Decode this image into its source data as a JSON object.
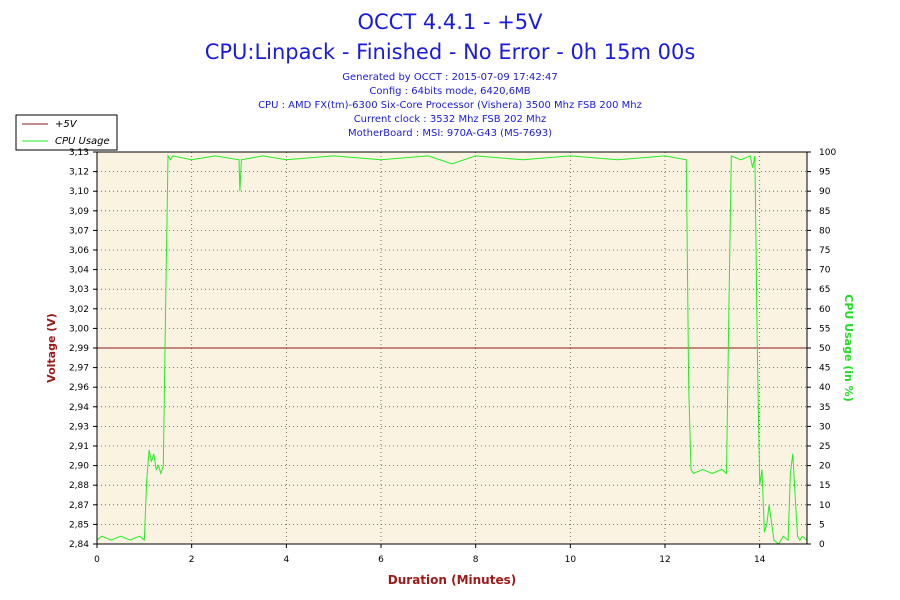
{
  "header": {
    "title": "OCCT 4.4.1 - +5V",
    "subtitle": "CPU:Linpack - Finished - No Error - 0h 15m 00s",
    "info_lines": [
      "Generated by OCCT : 2015-07-09 17:42:47",
      "Config : 64bits mode, 6420,6MB",
      "CPU : AMD FX(tm)-6300 Six-Core Processor (Vishera) 3500 Mhz FSB 200 Mhz",
      "Current clock : 3532 Mhz FSB 202 Mhz",
      "MotherBoard : MSI: 970A-G43 (MS-7693)"
    ]
  },
  "legend": {
    "placement": "top-left",
    "items": [
      {
        "label": "+5V",
        "color": "#8b1a1a"
      },
      {
        "label": "CPU Usage",
        "color": "#22ee22"
      }
    ]
  },
  "colors": {
    "plot_bg": "#faf3e2",
    "voltage": "#8b1a1a",
    "cpu": "#22ee22",
    "title": "#1a1ae0",
    "voltage_axis": "#a01818",
    "cpu_axis": "#22dd22"
  },
  "chart_data": {
    "type": "line",
    "xlabel": "Duration (Minutes)",
    "ylabel": "Voltage (V)",
    "y2label": "CPU Usage (in %)",
    "xlim": [
      0,
      15
    ],
    "ylim": [
      2.84,
      3.14
    ],
    "y2lim": [
      0,
      100
    ],
    "grid": true,
    "x_ticks": [
      0,
      2,
      4,
      6,
      8,
      10,
      12,
      14
    ],
    "y_ticks": [
      "2,84",
      "2,85",
      "2,87",
      "2,88",
      "2,90",
      "2,91",
      "2,93",
      "2,94",
      "2,96",
      "2,97",
      "2,99",
      "3,00",
      "3,02",
      "3,03",
      "3,04",
      "3,06",
      "3,07",
      "3,09",
      "3,10",
      "3,12",
      "3,13"
    ],
    "y2_ticks": [
      0,
      5,
      10,
      15,
      20,
      25,
      30,
      35,
      40,
      45,
      50,
      55,
      60,
      65,
      70,
      75,
      80,
      85,
      90,
      95,
      100
    ],
    "series": [
      {
        "name": "+5V",
        "axis": "left",
        "x": [
          0,
          15
        ],
        "values": [
          2.99,
          2.99
        ]
      },
      {
        "name": "CPU Usage",
        "axis": "right",
        "x": [
          0,
          0.1,
          0.3,
          0.5,
          0.7,
          0.9,
          1.0,
          1.05,
          1.1,
          1.15,
          1.2,
          1.25,
          1.3,
          1.35,
          1.4,
          1.45,
          1.5,
          1.55,
          1.6,
          2.0,
          2.5,
          3.0,
          3.02,
          3.05,
          3.5,
          4.0,
          5.0,
          6.0,
          7.0,
          7.5,
          8.0,
          9.0,
          10.0,
          11.0,
          12.0,
          12.45,
          12.5,
          12.55,
          12.6,
          12.8,
          13.0,
          13.2,
          13.3,
          13.35,
          13.4,
          13.6,
          13.8,
          13.85,
          13.9,
          13.95,
          14.0,
          14.05,
          14.1,
          14.15,
          14.2,
          14.3,
          14.4,
          14.5,
          14.6,
          14.65,
          14.7,
          14.75,
          14.8,
          14.85,
          14.9,
          15.0
        ],
        "values": [
          1,
          2,
          1,
          2,
          1,
          2,
          1,
          16,
          24,
          21,
          23,
          19,
          20,
          18,
          20,
          60,
          99,
          98,
          99,
          98,
          99,
          98,
          90,
          98,
          99,
          98,
          99,
          98,
          99,
          97,
          99,
          98,
          99,
          98,
          99,
          98,
          40,
          19,
          18,
          19,
          18,
          19,
          18,
          60,
          99,
          98,
          99,
          96,
          99,
          50,
          15,
          19,
          3,
          5,
          10,
          1,
          0,
          2,
          1,
          18,
          23,
          12,
          2,
          1,
          2,
          1
        ]
      }
    ]
  }
}
